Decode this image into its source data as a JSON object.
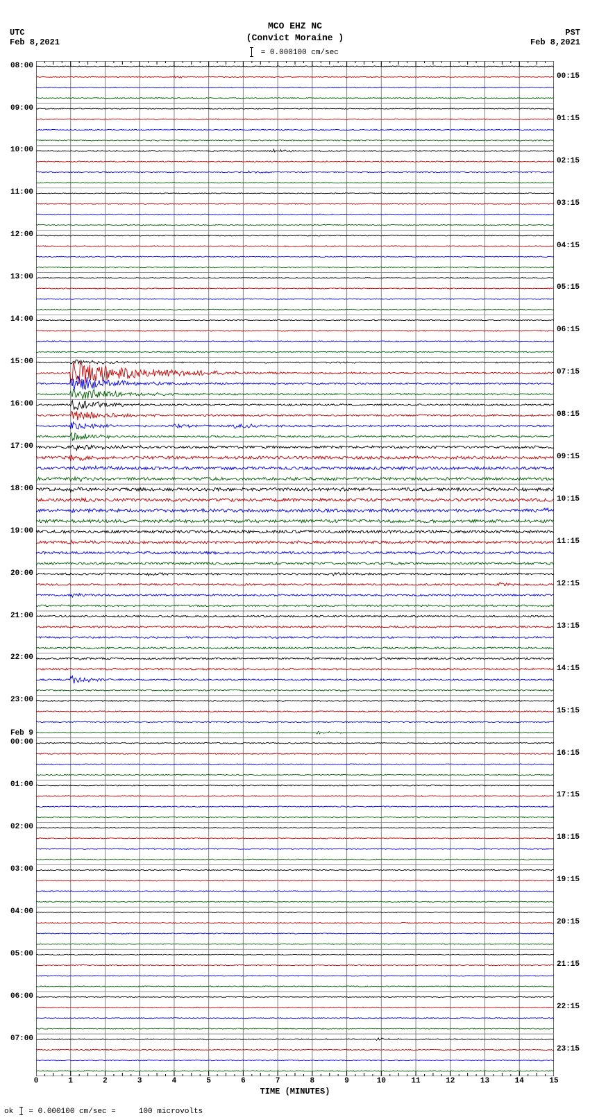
{
  "header": {
    "station": "MCO EHZ NC",
    "location": "(Convict Moraine )",
    "scale_label": "= 0.000100 cm/sec"
  },
  "tz_left": {
    "label": "UTC",
    "date": "Feb 8,2021"
  },
  "tz_right": {
    "label": "PST",
    "date": "Feb 8,2021"
  },
  "footer": {
    "text_pre": "= 0.000100 cm/sec =",
    "text_post": "100 microvolts",
    "prefix": "ok"
  },
  "x_axis": {
    "label": "TIME (MINUTES)",
    "ticks": [
      0,
      1,
      2,
      3,
      4,
      5,
      6,
      7,
      8,
      9,
      10,
      11,
      12,
      13,
      14,
      15
    ]
  },
  "seismogram": {
    "type": "helicorder",
    "n_traces": 96,
    "trace_colors": [
      "#000000",
      "#c00000",
      "#0000e0",
      "#006000"
    ],
    "grid_major_color": "#808080",
    "grid_minor_color": "#b0b0b0",
    "background_color": "#ffffff",
    "x_minutes": 15,
    "left_hour_start": 8,
    "left_labels": [
      "08:00",
      "09:00",
      "10:00",
      "11:00",
      "12:00",
      "13:00",
      "14:00",
      "15:00",
      "16:00",
      "17:00",
      "18:00",
      "19:00",
      "20:00",
      "21:00",
      "22:00",
      "23:00",
      "00:00",
      "01:00",
      "02:00",
      "03:00",
      "04:00",
      "05:00",
      "06:00",
      "07:00"
    ],
    "left_date_break": {
      "index": 16,
      "text": "Feb 9"
    },
    "right_labels": [
      "00:15",
      "01:15",
      "02:15",
      "03:15",
      "04:15",
      "05:15",
      "06:15",
      "07:15",
      "08:15",
      "09:15",
      "10:15",
      "11:15",
      "12:15",
      "13:15",
      "14:15",
      "15:15",
      "16:15",
      "17:15",
      "18:15",
      "19:15",
      "20:15",
      "21:15",
      "22:15",
      "23:15"
    ],
    "base_noise": 0.8,
    "traces_noise_scale": [
      0.8,
      0.8,
      0.8,
      0.9,
      0.8,
      0.9,
      0.8,
      1.0,
      1.1,
      0.9,
      1.0,
      0.8,
      0.8,
      0.8,
      0.8,
      0.8,
      0.8,
      0.8,
      0.8,
      0.9,
      0.8,
      0.8,
      0.8,
      0.8,
      0.8,
      0.9,
      0.9,
      0.9,
      1.2,
      1.4,
      1.4,
      1.4,
      1.5,
      1.6,
      1.6,
      1.6,
      2.2,
      2.6,
      2.6,
      2.6,
      2.8,
      2.8,
      2.8,
      2.8,
      2.6,
      2.4,
      2.2,
      2.0,
      1.8,
      1.6,
      1.6,
      1.6,
      1.6,
      1.6,
      1.6,
      1.6,
      1.6,
      1.6,
      1.4,
      1.2,
      1.2,
      1.0,
      1.0,
      0.9,
      1.0,
      1.0,
      0.9,
      0.9,
      0.9,
      0.9,
      0.9,
      0.9,
      0.8,
      0.8,
      0.9,
      0.8,
      0.9,
      0.8,
      0.8,
      0.8,
      0.8,
      0.8,
      0.8,
      0.8,
      0.8,
      0.8,
      0.8,
      0.8,
      0.8,
      0.8,
      0.8,
      0.8,
      0.9,
      0.8,
      0.8,
      0.8
    ],
    "events": [
      {
        "trace": 28,
        "x_min": 1.0,
        "amplitude": 4,
        "decay": 1.0
      },
      {
        "trace": 29,
        "x_min": 1.0,
        "amplitude": 18,
        "decay": 2.0
      },
      {
        "trace": 30,
        "x_min": 1.0,
        "amplitude": 12,
        "decay": 1.4
      },
      {
        "trace": 31,
        "x_min": 1.0,
        "amplitude": 10,
        "decay": 1.2
      },
      {
        "trace": 32,
        "x_min": 1.0,
        "amplitude": 8,
        "decay": 1.0
      },
      {
        "trace": 33,
        "x_min": 1.0,
        "amplitude": 8,
        "decay": 1.0
      },
      {
        "trace": 34,
        "x_min": 1.0,
        "amplitude": 6,
        "decay": 0.8
      },
      {
        "trace": 35,
        "x_min": 1.0,
        "amplitude": 6,
        "decay": 0.8
      },
      {
        "trace": 36,
        "x_min": 1.0,
        "amplitude": 5,
        "decay": 0.8
      },
      {
        "trace": 37,
        "x_min": 1.0,
        "amplitude": 5,
        "decay": 0.8
      },
      {
        "trace": 38,
        "x_min": 1.0,
        "amplitude": 4,
        "decay": 0.6
      },
      {
        "trace": 39,
        "x_min": 1.0,
        "amplitude": 4,
        "decay": 0.6
      },
      {
        "trace": 40,
        "x_min": 1.0,
        "amplitude": 3,
        "decay": 0.5
      },
      {
        "trace": 41,
        "x_min": 1.0,
        "amplitude": 3,
        "decay": 0.5
      },
      {
        "trace": 42,
        "x_min": 1.0,
        "amplitude": 3,
        "decay": 0.5
      },
      {
        "trace": 45,
        "x_min": 1.0,
        "amplitude": 3,
        "decay": 0.4
      },
      {
        "trace": 50,
        "x_min": 1.0,
        "amplitude": 3,
        "decay": 0.4
      },
      {
        "trace": 56,
        "x_min": 1.0,
        "amplitude": 3,
        "decay": 0.4
      },
      {
        "trace": 58,
        "x_min": 1.0,
        "amplitude": 6,
        "decay": 0.6
      },
      {
        "trace": 34,
        "x_min": 4.0,
        "amplitude": 3,
        "decay": 0.5
      },
      {
        "trace": 34,
        "x_min": 5.7,
        "amplitude": 4,
        "decay": 0.7
      },
      {
        "trace": 8,
        "x_min": 6.8,
        "amplitude": 2.5,
        "decay": 0.4
      },
      {
        "trace": 10,
        "x_min": 6.1,
        "amplitude": 2.5,
        "decay": 0.4
      },
      {
        "trace": 42,
        "x_min": 14.7,
        "amplitude": 4,
        "decay": 0.4
      },
      {
        "trace": 47,
        "x_min": 14.7,
        "amplitude": 3,
        "decay": 0.4
      },
      {
        "trace": 63,
        "x_min": 8.1,
        "amplitude": 2.5,
        "decay": 0.4
      },
      {
        "trace": 48,
        "x_min": 8.6,
        "amplitude": 2.5,
        "decay": 0.5
      },
      {
        "trace": 48,
        "x_min": 3.2,
        "amplitude": 2,
        "decay": 0.3
      },
      {
        "trace": 49,
        "x_min": 13.4,
        "amplitude": 2.5,
        "decay": 0.4
      },
      {
        "trace": 92,
        "x_min": 9.8,
        "amplitude": 2.5,
        "decay": 0.4
      },
      {
        "trace": 1,
        "x_min": 4.0,
        "amplitude": 2,
        "decay": 0.3
      }
    ]
  }
}
